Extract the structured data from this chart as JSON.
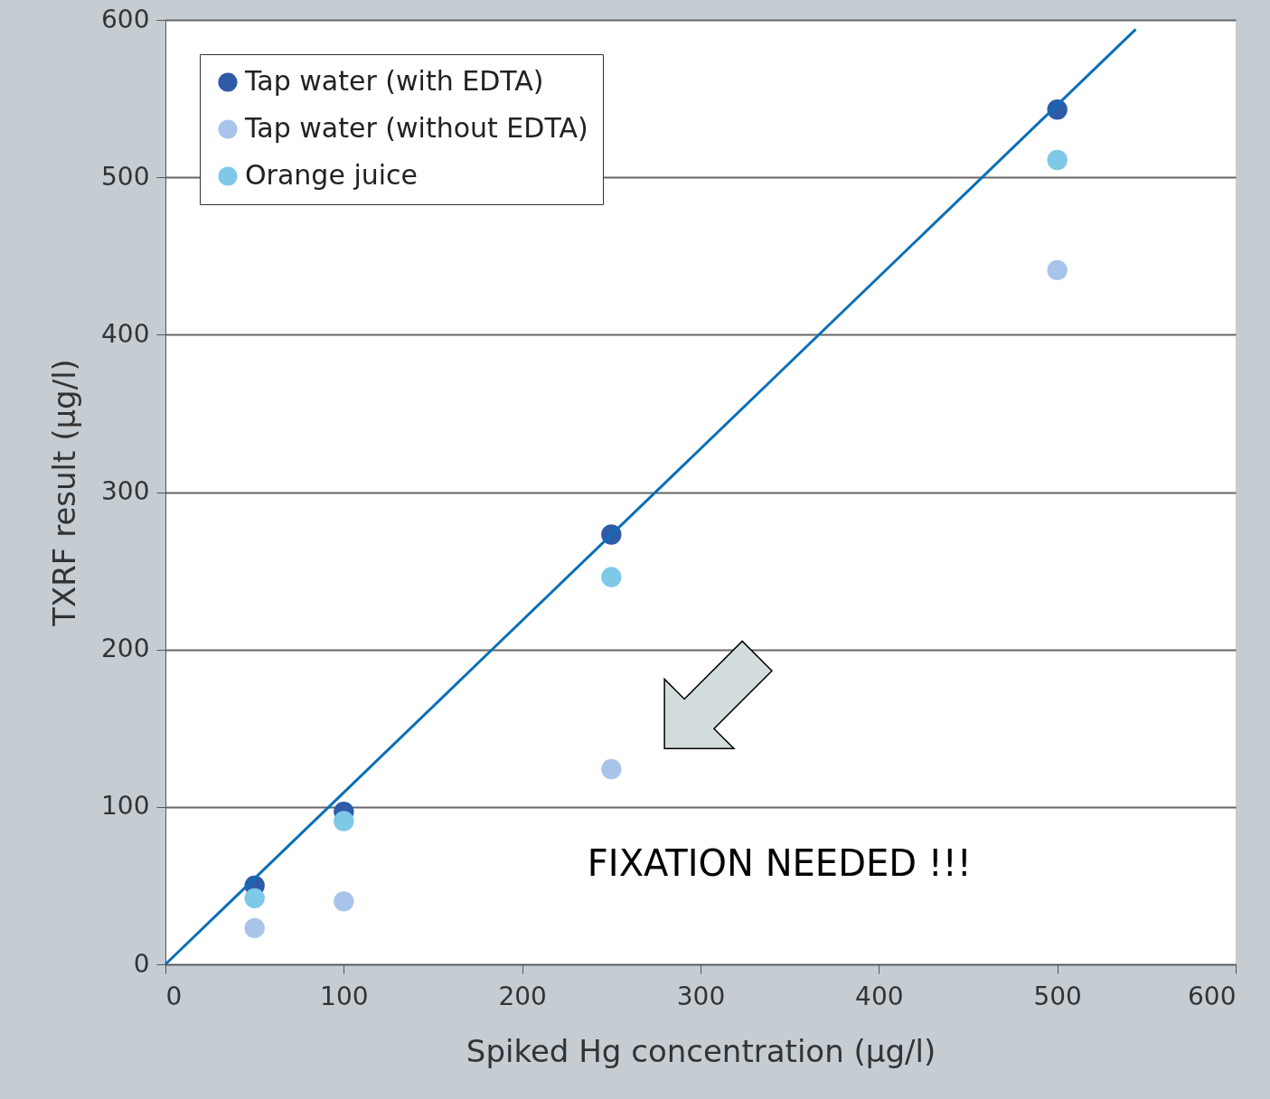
{
  "chart_data": {
    "type": "scatter",
    "xlabel": "Spiked Hg concentration (µg/l)",
    "ylabel": "TXRF result (µg/l)",
    "x": [
      50,
      100,
      250,
      500
    ],
    "series": [
      {
        "name": "Tap water (with EDTA)",
        "color": "#2f5aa8",
        "values": [
          50,
          97,
          273,
          543
        ]
      },
      {
        "name": "Tap water (without EDTA)",
        "color": "#a9c4ea",
        "values": [
          23,
          40,
          124,
          441
        ]
      },
      {
        "name": "Orange juice",
        "color": "#7ec8e8",
        "values": [
          42,
          91,
          246,
          511
        ]
      },
      {
        "type": "line",
        "color": "#0a6fb8",
        "x": [
          0,
          544
        ],
        "values": [
          0,
          594
        ],
        "line_style": "solid",
        "marker": "none"
      }
    ],
    "xlim": [
      0,
      600
    ],
    "ylim": [
      0,
      600
    ],
    "xticks": [
      0,
      100,
      200,
      300,
      400,
      500,
      600
    ],
    "yticks": [
      0,
      100,
      200,
      300,
      400,
      500,
      600
    ],
    "grid": "y",
    "legend": "top left",
    "marker": "circle",
    "annotations": [
      {
        "text": "FIXATION NEEDED !!!",
        "x": 250,
        "y": 124
      }
    ]
  }
}
